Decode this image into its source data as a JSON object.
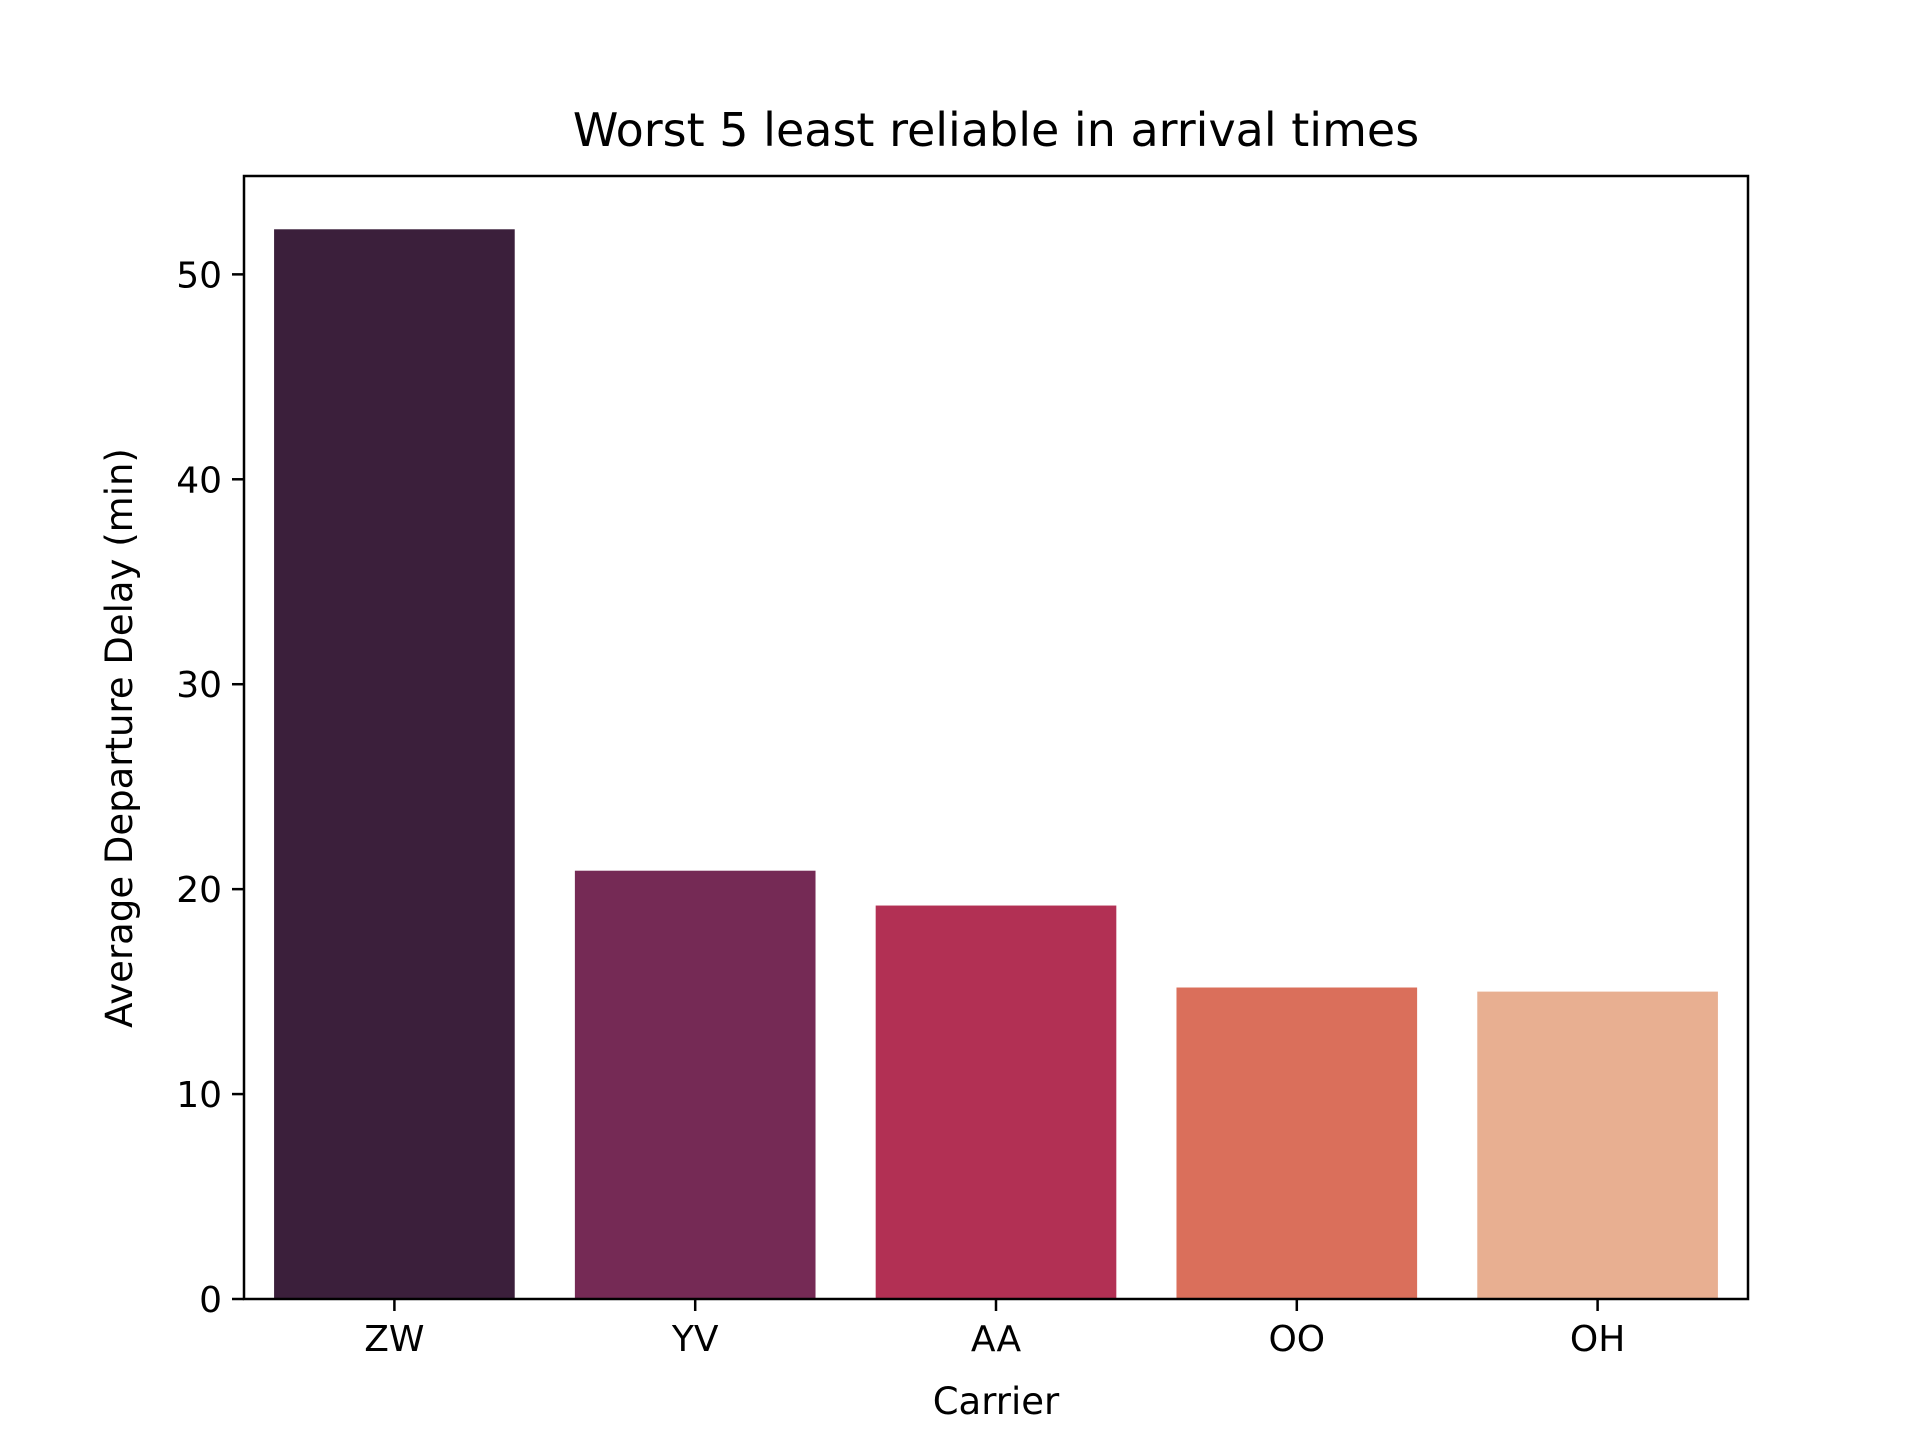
{
  "chart_data": {
    "type": "bar",
    "title": "Worst 5 least reliable in arrival times",
    "xlabel": "Carrier",
    "ylabel": "Average Departure Delay (min)",
    "categories": [
      "ZW",
      "YV",
      "AA",
      "OO",
      "OH"
    ],
    "values": [
      52.2,
      20.9,
      19.2,
      15.2,
      15.0
    ],
    "colors": [
      "#3b1f3b",
      "#752a55",
      "#b23054",
      "#da6f5b",
      "#e8af91"
    ],
    "ylim": [
      0,
      54.8
    ],
    "yticks": [
      0,
      10,
      20,
      30,
      40,
      50
    ],
    "grid": false,
    "legend": "none"
  }
}
